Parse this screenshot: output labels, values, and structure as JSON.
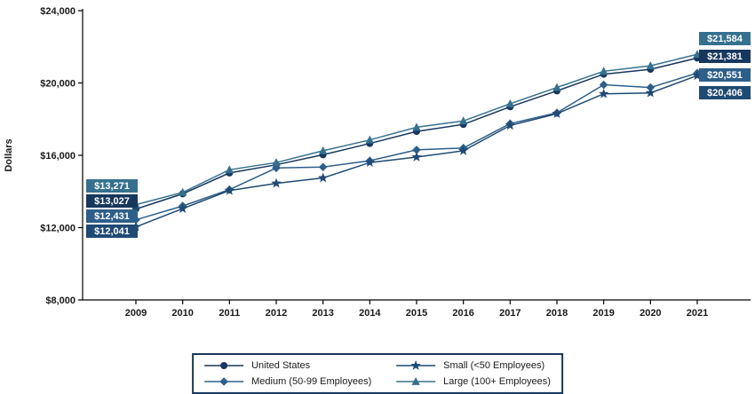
{
  "chart_data": {
    "type": "line",
    "title": "",
    "xlabel": "",
    "ylabel": "Dollars",
    "ylim": [
      8000,
      24000
    ],
    "grid": false,
    "yticks": [
      {
        "value": 24000,
        "label": "$24,000"
      },
      {
        "value": 20000,
        "label": "$20,000"
      },
      {
        "value": 16000,
        "label": "$16,000"
      },
      {
        "value": 12000,
        "label": "$12,000"
      },
      {
        "value": 8000,
        "label": "$8,000"
      }
    ],
    "categories": [
      "2009",
      "2010",
      "2011",
      "2012",
      "2013",
      "2014",
      "2015",
      "2016",
      "2017",
      "2018",
      "2019",
      "2020",
      "2021"
    ],
    "series": [
      {
        "name": "United States",
        "marker": "circle",
        "color": "#17375e",
        "values": [
          13027,
          13871,
          15022,
          15473,
          16029,
          16655,
          17322,
          17710,
          18687,
          19565,
          20486,
          20758,
          21381
        ]
      },
      {
        "name": "Medium (50-99 Employees)",
        "marker": "diamond",
        "color": "#2d5f8a",
        "values": [
          12431,
          13200,
          14100,
          15300,
          15350,
          15700,
          16300,
          16400,
          17750,
          18350,
          19900,
          19750,
          20551
        ]
      },
      {
        "name": "Small (<50 Employees)",
        "marker": "star",
        "color": "#1f4a73",
        "values": [
          12041,
          13050,
          14050,
          14450,
          14750,
          15600,
          15900,
          16250,
          17650,
          18300,
          19400,
          19450,
          20406
        ]
      },
      {
        "name": "Large (100+ Employees)",
        "marker": "triangle",
        "color": "#35718f",
        "values": [
          13271,
          13950,
          15200,
          15600,
          16250,
          16850,
          17550,
          17900,
          18850,
          19750,
          20650,
          20950,
          21584
        ]
      }
    ],
    "point_labels": [
      {
        "series": "Large (100+ Employees)",
        "text": "$13,271",
        "side": "left",
        "slot": 0
      },
      {
        "series": "United States",
        "text": "$13,027",
        "side": "left",
        "slot": 1
      },
      {
        "series": "Medium (50-99 Employees)",
        "text": "$12,431",
        "side": "left",
        "slot": 2
      },
      {
        "series": "Small (<50 Employees)",
        "text": "$12,041",
        "side": "left",
        "slot": 3
      },
      {
        "series": "Large (100+ Employees)",
        "text": "$21,584",
        "side": "right",
        "slot": 0
      },
      {
        "series": "United States",
        "text": "$21,381",
        "side": "right",
        "slot": 1
      },
      {
        "series": "Medium (50-99 Employees)",
        "text": "$20,551",
        "side": "right",
        "slot": 2
      },
      {
        "series": "Small (<50 Employees)",
        "text": "$20,406",
        "side": "right",
        "slot": 3
      }
    ],
    "legend": {
      "position": "bottom",
      "entries": [
        "United States",
        "Small (<50 Employees)",
        "Medium (50-99 Employees)",
        "Large (100+ Employees)"
      ]
    }
  }
}
